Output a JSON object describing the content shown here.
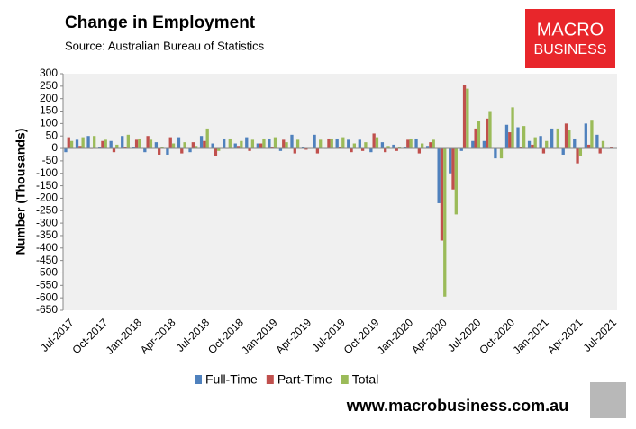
{
  "chart_data": {
    "type": "bar",
    "title": "Change in Employment",
    "subtitle": "Source: Australian Bureau of Statistics",
    "logo_line1": "MACRO",
    "logo_line2": "BUSINESS",
    "website": "www.macrobusiness.com.au",
    "y_label": "Number (Thousands)",
    "categories": [
      "Jul-2017",
      null,
      null,
      "Oct-2017",
      null,
      null,
      "Jan-2018",
      null,
      null,
      "Apr-2018",
      null,
      null,
      "Jul-2018",
      null,
      null,
      "Oct-2018",
      null,
      null,
      "Jan-2019",
      null,
      null,
      "Apr-2019",
      null,
      null,
      "Jul-2019",
      null,
      null,
      "Oct-2019",
      null,
      null,
      "Jan-2020",
      null,
      null,
      "Apr-2020",
      null,
      null,
      "Jul-2020",
      null,
      null,
      "Oct-2020",
      null,
      null,
      "Jan-2021",
      null,
      null,
      "Apr-2021",
      null,
      null,
      "Jul-2021"
    ],
    "series": [
      {
        "name": "Full-Time",
        "color": "#4f81bd",
        "values": [
          -15,
          35,
          50,
          5,
          30,
          50,
          5,
          -15,
          25,
          -25,
          45,
          -15,
          50,
          20,
          40,
          20,
          45,
          20,
          40,
          -10,
          55,
          5,
          55,
          0,
          40,
          35,
          35,
          -15,
          25,
          15,
          5,
          40,
          10,
          -220,
          -100,
          -10,
          30,
          30,
          -40,
          95,
          85,
          30,
          50,
          80,
          -25,
          40,
          100,
          55,
          0
        ]
      },
      {
        "name": "Part-Time",
        "color": "#c0504d",
        "values": [
          45,
          10,
          -2,
          30,
          -15,
          5,
          35,
          50,
          -25,
          45,
          -20,
          25,
          30,
          -30,
          0,
          10,
          -10,
          20,
          5,
          35,
          -20,
          -5,
          -20,
          40,
          5,
          -15,
          -10,
          60,
          -15,
          -10,
          35,
          -20,
          25,
          -370,
          -165,
          255,
          80,
          120,
          0,
          65,
          5,
          15,
          -20,
          0,
          100,
          -60,
          15,
          -20,
          5
        ]
      },
      {
        "name": "Total",
        "color": "#9bbb59",
        "values": [
          30,
          45,
          50,
          35,
          15,
          55,
          40,
          35,
          5,
          20,
          25,
          10,
          80,
          -10,
          40,
          30,
          35,
          40,
          45,
          25,
          35,
          0,
          35,
          40,
          45,
          20,
          25,
          45,
          10,
          5,
          40,
          20,
          35,
          -595,
          -265,
          240,
          110,
          150,
          -40,
          165,
          90,
          45,
          30,
          80,
          75,
          -30,
          115,
          30,
          2
        ]
      }
    ],
    "ylim": [
      -650,
      300
    ],
    "yticks": [
      -650,
      -600,
      -550,
      -500,
      -450,
      -400,
      -350,
      -300,
      -250,
      -200,
      -150,
      -100,
      -50,
      0,
      50,
      100,
      150,
      200,
      250,
      300
    ]
  }
}
